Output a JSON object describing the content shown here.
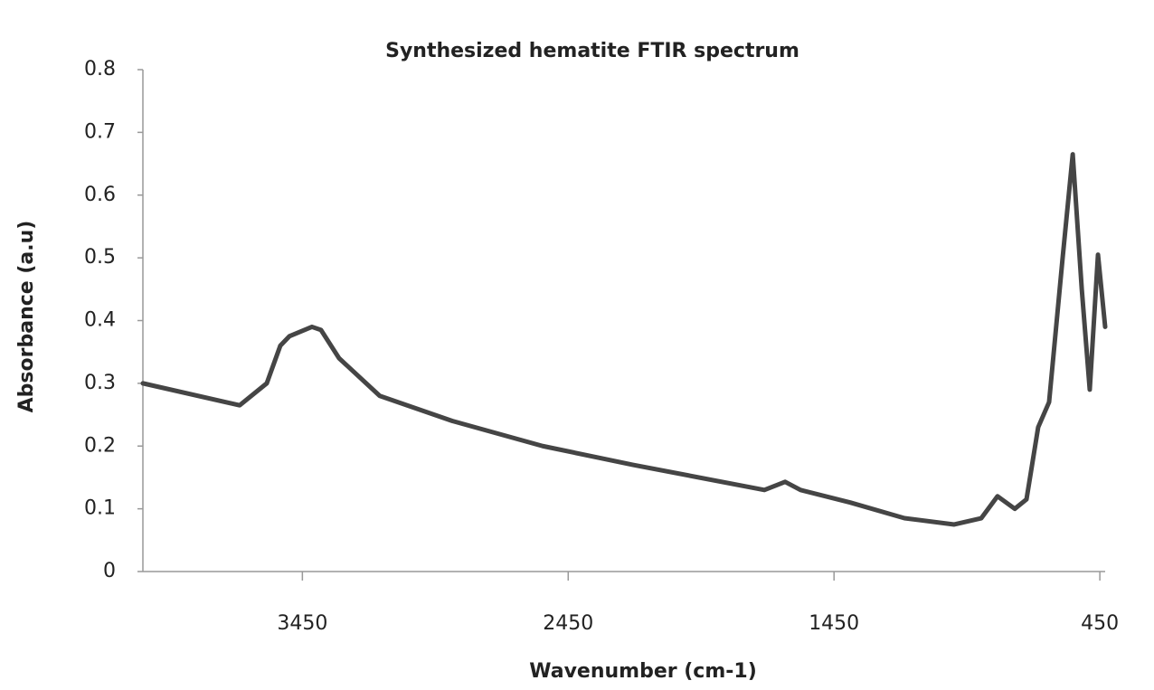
{
  "chart_data": {
    "type": "line",
    "title": "Synthesized hematite  FTIR spectrum",
    "x_label": "Wavenumber (cm-1)",
    "y_label": "Absorbance (a.u)",
    "x": [
      4050,
      3686,
      3584,
      3533,
      3499,
      3414,
      3380,
      3312,
      3159,
      2886,
      2546,
      2206,
      1712,
      1634,
      1576,
      1389,
      1185,
      998,
      896,
      835,
      770,
      726,
      682,
      641,
      590,
      552,
      518,
      488,
      457,
      430
    ],
    "series": [
      {
        "color": "#454545",
        "values": [
          0.3,
          0.265,
          0.3,
          0.36,
          0.375,
          0.39,
          0.385,
          0.34,
          0.28,
          0.24,
          0.2,
          0.17,
          0.13,
          0.143,
          0.13,
          0.11,
          0.085,
          0.075,
          0.085,
          0.12,
          0.1,
          0.115,
          0.23,
          0.27,
          0.5,
          0.665,
          0.45,
          0.29,
          0.505,
          0.39
        ]
      }
    ],
    "xlim": [
      4050,
      430
    ],
    "xticks": [
      3450,
      2450,
      1450,
      450
    ],
    "ylim": [
      0,
      0.8
    ],
    "yticks": [
      0,
      0.1,
      0.2,
      0.3,
      0.4,
      0.5,
      0.6,
      0.7,
      0.8
    ],
    "grid": false
  }
}
